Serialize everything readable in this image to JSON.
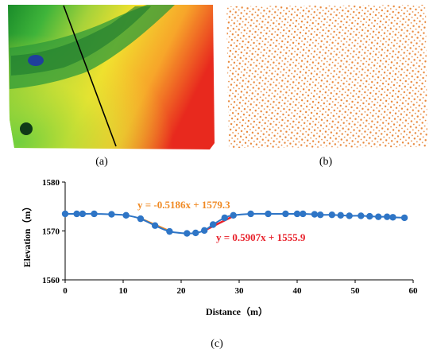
{
  "panels": {
    "a": {
      "caption": "(a)",
      "line_color": "#000000"
    },
    "b": {
      "caption": "(b)",
      "point_color": "#e8873a"
    },
    "c": {
      "caption": "(c)"
    }
  },
  "chart_data": {
    "type": "line",
    "title": "",
    "xlabel": "Distance（m）",
    "ylabel": "Elevation（m）",
    "xlim": [
      0,
      60
    ],
    "ylim": [
      1560,
      1580
    ],
    "xticks": [
      0,
      10,
      20,
      30,
      40,
      50,
      60
    ],
    "yticks": [
      1560,
      1570,
      1580
    ],
    "grid": false,
    "series": [
      {
        "color": "#2e75c6",
        "x": [
          0,
          2,
          3,
          5,
          8,
          10.5,
          13,
          15.5,
          18,
          21,
          22.5,
          24,
          25.5,
          27.5,
          29,
          32,
          35,
          38,
          40,
          41,
          43,
          44,
          46,
          47.5,
          49,
          51,
          52.5,
          54,
          55.5,
          56.5,
          58.5
        ],
        "y": [
          1573.5,
          1573.5,
          1573.5,
          1573.5,
          1573.4,
          1573.2,
          1572.5,
          1571.1,
          1569.9,
          1569.5,
          1569.6,
          1570.1,
          1571.3,
          1572.7,
          1573.2,
          1573.5,
          1573.5,
          1573.5,
          1573.5,
          1573.5,
          1573.4,
          1573.3,
          1573.3,
          1573.2,
          1573.1,
          1573.1,
          1573,
          1572.9,
          1572.9,
          1572.8,
          1572.7
        ]
      }
    ],
    "fits": [
      {
        "label": "y = -0.5186x + 1579.3",
        "color": "#f08a24",
        "x": [
          13.3,
          18.3
        ]
      },
      {
        "label": "y = 0.5907x + 1555.9",
        "color": "#e8202a",
        "x": [
          24,
          29.5
        ]
      }
    ]
  }
}
